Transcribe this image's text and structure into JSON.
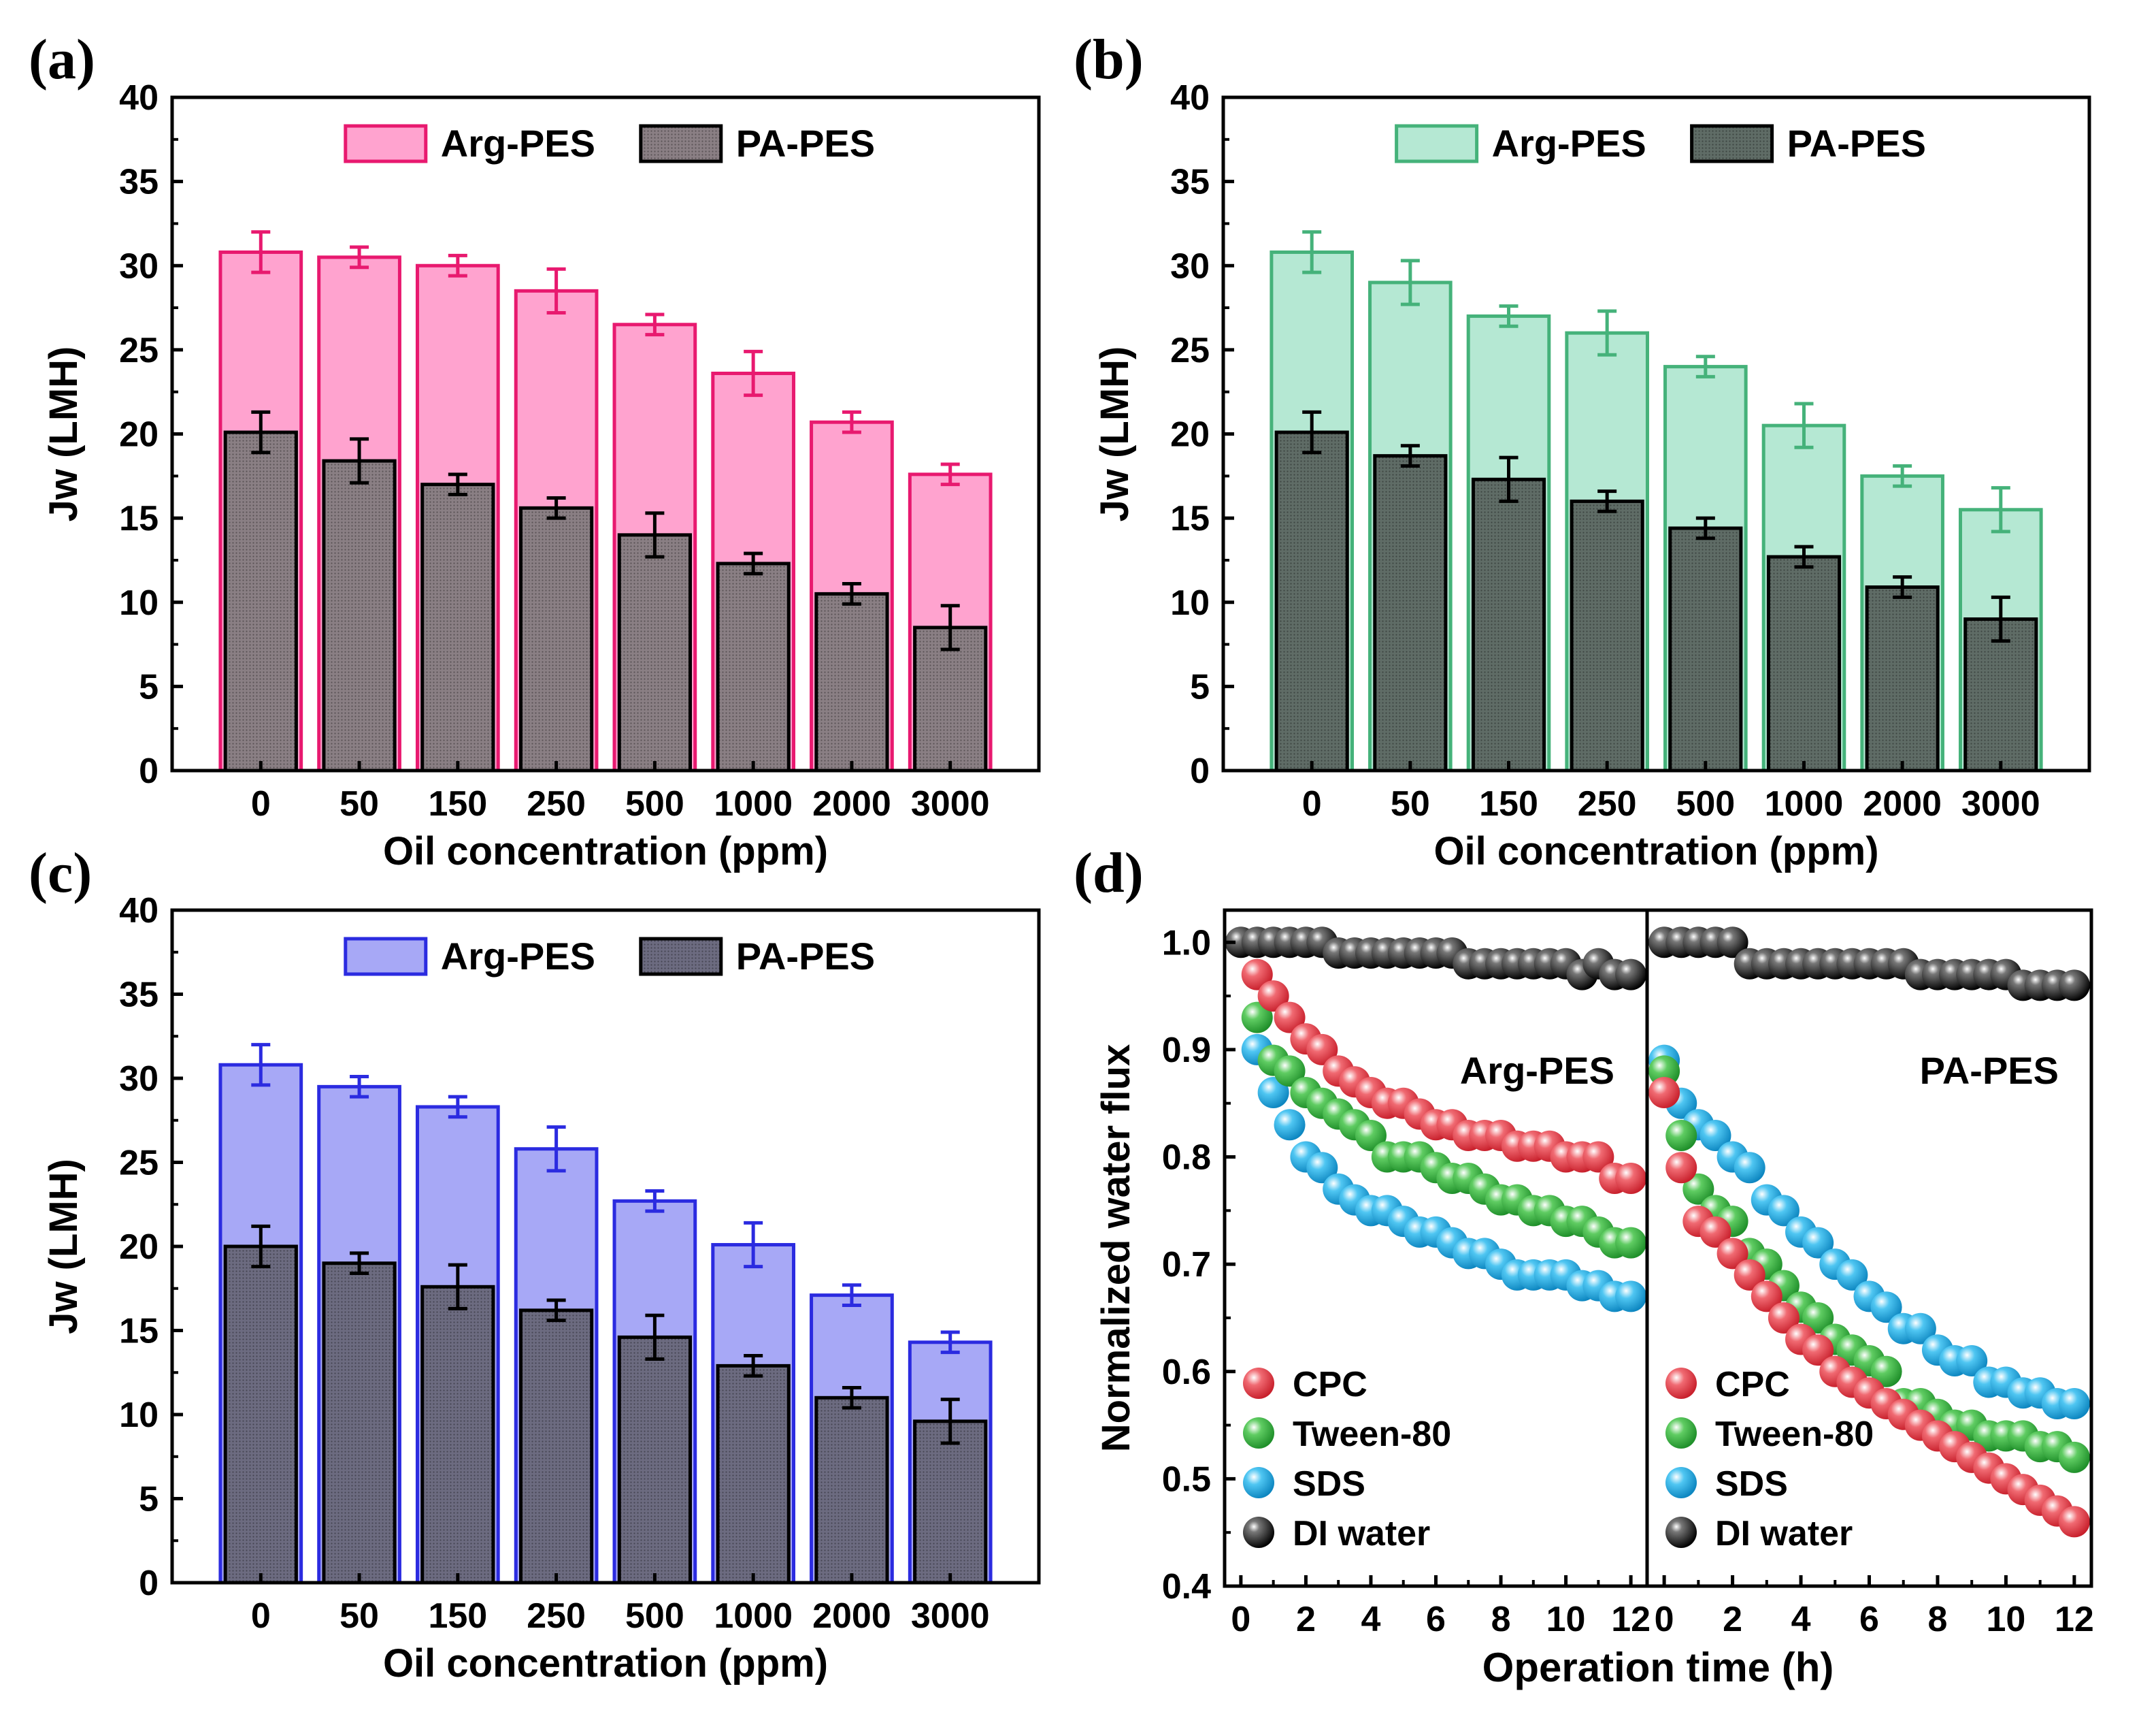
{
  "figure": {
    "panels": [
      {
        "id": "a",
        "tag": "(a)"
      },
      {
        "id": "b",
        "tag": "(b)"
      },
      {
        "id": "c",
        "tag": "(c)"
      },
      {
        "id": "d",
        "tag": "(d)"
      }
    ]
  },
  "chart_data": [
    {
      "panel": "(a)",
      "type": "bar",
      "title": "",
      "xlabel": "Oil concentration (ppm)",
      "ylabel": "Jw (LMH)",
      "ylim": [
        0,
        40
      ],
      "yticks": [
        0,
        5,
        10,
        15,
        20,
        25,
        30,
        35,
        40
      ],
      "categories": [
        "0",
        "50",
        "150",
        "250",
        "500",
        "1000",
        "2000",
        "3000"
      ],
      "legend_position": "top-center",
      "series": [
        {
          "name": "Arg-PES",
          "fill": "#ffa3cf",
          "stroke": "#e8196f",
          "values": [
            30.8,
            30.5,
            30.0,
            28.5,
            26.5,
            23.6,
            20.7,
            17.6
          ],
          "errors": [
            1.2,
            0.6,
            0.6,
            1.3,
            0.6,
            1.3,
            0.6,
            0.6
          ]
        },
        {
          "name": "PA-PES",
          "fill": "#8a7f84",
          "stroke": "#000000",
          "values": [
            20.1,
            18.4,
            17.0,
            15.6,
            14.0,
            12.3,
            10.5,
            8.5
          ],
          "errors": [
            1.2,
            1.3,
            0.6,
            0.6,
            1.3,
            0.6,
            0.6,
            1.3
          ]
        }
      ]
    },
    {
      "panel": "(b)",
      "type": "bar",
      "title": "",
      "xlabel": "Oil concentration (ppm)",
      "ylabel": "Jw (LMH)",
      "ylim": [
        0,
        40
      ],
      "yticks": [
        0,
        5,
        10,
        15,
        20,
        25,
        30,
        35,
        40
      ],
      "categories": [
        "0",
        "50",
        "150",
        "250",
        "500",
        "1000",
        "2000",
        "3000"
      ],
      "legend_position": "top-center",
      "series": [
        {
          "name": "Arg-PES",
          "fill": "#b5e8d3",
          "stroke": "#45b27a",
          "values": [
            30.8,
            29.0,
            27.0,
            26.0,
            24.0,
            20.5,
            17.5,
            15.5
          ],
          "errors": [
            1.2,
            1.3,
            0.6,
            1.3,
            0.6,
            1.3,
            0.6,
            1.3
          ]
        },
        {
          "name": "PA-PES",
          "fill": "#5f6c66",
          "stroke": "#000000",
          "values": [
            20.1,
            18.7,
            17.3,
            16.0,
            14.4,
            12.7,
            10.9,
            9.0
          ],
          "errors": [
            1.2,
            0.6,
            1.3,
            0.6,
            0.6,
            0.6,
            0.6,
            1.3
          ]
        }
      ]
    },
    {
      "panel": "(c)",
      "type": "bar",
      "title": "",
      "xlabel": "Oil concentration (ppm)",
      "ylabel": "Jw (LMH)",
      "ylim": [
        0,
        40
      ],
      "yticks": [
        0,
        5,
        10,
        15,
        20,
        25,
        30,
        35,
        40
      ],
      "categories": [
        "0",
        "50",
        "150",
        "250",
        "500",
        "1000",
        "2000",
        "3000"
      ],
      "legend_position": "top-center",
      "series": [
        {
          "name": "Arg-PES",
          "fill": "#a7a8f6",
          "stroke": "#2b2be0",
          "values": [
            30.8,
            29.5,
            28.3,
            25.8,
            22.7,
            20.1,
            17.1,
            14.3
          ],
          "errors": [
            1.2,
            0.6,
            0.6,
            1.3,
            0.6,
            1.3,
            0.6,
            0.6
          ]
        },
        {
          "name": "PA-PES",
          "fill": "#6c6b80",
          "stroke": "#000000",
          "values": [
            20.0,
            19.0,
            17.6,
            16.2,
            14.6,
            12.9,
            11.0,
            9.6
          ],
          "errors": [
            1.2,
            0.6,
            1.3,
            0.6,
            1.3,
            0.6,
            0.6,
            1.3
          ]
        }
      ]
    },
    {
      "panel": "(d)",
      "type": "scatter",
      "title": "",
      "xlabel": "Operation time (h)",
      "ylabel": "Normalized water flux",
      "xlim": [
        -0.5,
        12.5
      ],
      "xticks": [
        0,
        2,
        4,
        6,
        8,
        10,
        12
      ],
      "ylim": [
        0.4,
        1.03
      ],
      "yticks": [
        0.4,
        0.5,
        0.6,
        0.7,
        0.8,
        0.9,
        1.0
      ],
      "legend_position": "bottom-left",
      "subplots": [
        {
          "label": "Arg-PES",
          "series": [
            {
              "name": "DI water",
              "color": "#111111",
              "x": [
                0,
                0.5,
                1,
                1.5,
                2,
                2.5,
                3,
                3.5,
                4,
                4.5,
                5,
                5.5,
                6,
                6.5,
                7,
                7.5,
                8,
                8.5,
                9,
                9.5,
                10,
                10.5,
                11,
                11.5,
                12
              ],
              "y": [
                1.0,
                1.0,
                1.0,
                1.0,
                1.0,
                1.0,
                0.99,
                0.99,
                0.99,
                0.99,
                0.99,
                0.99,
                0.99,
                0.99,
                0.98,
                0.98,
                0.98,
                0.98,
                0.98,
                0.98,
                0.98,
                0.97,
                0.98,
                0.97,
                0.97
              ]
            },
            {
              "name": "CPC",
              "color": "#e0424e",
              "x": [
                0.5,
                1,
                1.5,
                2,
                2.5,
                3,
                3.5,
                4,
                4.5,
                5,
                5.5,
                6,
                6.5,
                7,
                7.5,
                8,
                8.5,
                9,
                9.5,
                10,
                10.5,
                11,
                11.5,
                12
              ],
              "y": [
                0.97,
                0.95,
                0.93,
                0.91,
                0.9,
                0.88,
                0.87,
                0.86,
                0.85,
                0.85,
                0.84,
                0.83,
                0.83,
                0.82,
                0.82,
                0.82,
                0.81,
                0.81,
                0.81,
                0.8,
                0.8,
                0.8,
                0.78,
                0.78
              ]
            },
            {
              "name": "Tween-80",
              "color": "#35b540",
              "x": [
                0.5,
                1,
                1.5,
                2,
                2.5,
                3,
                3.5,
                4,
                4.5,
                5,
                5.5,
                6,
                6.5,
                7,
                7.5,
                8,
                8.5,
                9,
                9.5,
                10,
                10.5,
                11,
                11.5,
                12
              ],
              "y": [
                0.93,
                0.89,
                0.88,
                0.86,
                0.85,
                0.84,
                0.83,
                0.82,
                0.8,
                0.8,
                0.8,
                0.79,
                0.78,
                0.78,
                0.77,
                0.76,
                0.76,
                0.75,
                0.75,
                0.74,
                0.74,
                0.73,
                0.72,
                0.72
              ]
            },
            {
              "name": "SDS",
              "color": "#1fb1e8",
              "x": [
                0.5,
                1,
                1.5,
                2,
                2.5,
                3,
                3.5,
                4,
                4.5,
                5,
                5.5,
                6,
                6.5,
                7,
                7.5,
                8,
                8.5,
                9,
                9.5,
                10,
                10.5,
                11,
                11.5,
                12
              ],
              "y": [
                0.9,
                0.86,
                0.83,
                0.8,
                0.79,
                0.77,
                0.76,
                0.75,
                0.75,
                0.74,
                0.73,
                0.73,
                0.72,
                0.71,
                0.71,
                0.7,
                0.69,
                0.69,
                0.69,
                0.69,
                0.68,
                0.68,
                0.67,
                0.67
              ]
            }
          ]
        },
        {
          "label": "PA-PES",
          "series": [
            {
              "name": "DI water",
              "color": "#111111",
              "x": [
                0,
                0.5,
                1,
                1.5,
                2,
                2.5,
                3,
                3.5,
                4,
                4.5,
                5,
                5.5,
                6,
                6.5,
                7,
                7.5,
                8,
                8.5,
                9,
                9.5,
                10,
                10.5,
                11,
                11.5,
                12
              ],
              "y": [
                1.0,
                1.0,
                1.0,
                1.0,
                1.0,
                0.98,
                0.98,
                0.98,
                0.98,
                0.98,
                0.98,
                0.98,
                0.98,
                0.98,
                0.98,
                0.97,
                0.97,
                0.97,
                0.97,
                0.97,
                0.97,
                0.96,
                0.96,
                0.96,
                0.96
              ]
            },
            {
              "name": "CPC",
              "color": "#e0424e",
              "x": [
                0,
                0.5,
                1,
                1.5,
                2,
                2.5,
                3,
                3.5,
                4,
                4.5,
                5,
                5.5,
                6,
                6.5,
                7,
                7.5,
                8,
                8.5,
                9,
                9.5,
                10,
                10.5,
                11,
                11.5,
                12
              ],
              "y": [
                0.86,
                0.79,
                0.74,
                0.73,
                0.71,
                0.69,
                0.67,
                0.65,
                0.63,
                0.62,
                0.6,
                0.59,
                0.58,
                0.57,
                0.56,
                0.55,
                0.54,
                0.53,
                0.52,
                0.51,
                0.5,
                0.49,
                0.48,
                0.47,
                0.46
              ]
            },
            {
              "name": "Tween-80",
              "color": "#35b540",
              "x": [
                0,
                0.5,
                1,
                1.5,
                2,
                2.5,
                3,
                3.5,
                4,
                4.5,
                5,
                5.5,
                6,
                6.5,
                7,
                7.5,
                8,
                8.5,
                9,
                9.5,
                10,
                10.5,
                11,
                11.5,
                12
              ],
              "y": [
                0.88,
                0.82,
                0.77,
                0.75,
                0.74,
                0.71,
                0.7,
                0.68,
                0.66,
                0.65,
                0.63,
                0.62,
                0.61,
                0.6,
                0.57,
                0.57,
                0.56,
                0.55,
                0.55,
                0.54,
                0.54,
                0.54,
                0.53,
                0.53,
                0.52
              ]
            },
            {
              "name": "SDS",
              "color": "#1fb1e8",
              "x": [
                0,
                0.5,
                1,
                1.5,
                2,
                2.5,
                3,
                3.5,
                4,
                4.5,
                5,
                5.5,
                6,
                6.5,
                7,
                7.5,
                8,
                8.5,
                9,
                9.5,
                10,
                10.5,
                11,
                11.5,
                12
              ],
              "y": [
                0.89,
                0.85,
                0.83,
                0.82,
                0.8,
                0.79,
                0.76,
                0.75,
                0.73,
                0.72,
                0.7,
                0.69,
                0.67,
                0.66,
                0.64,
                0.64,
                0.62,
                0.61,
                0.61,
                0.59,
                0.59,
                0.58,
                0.58,
                0.57,
                0.57
              ]
            }
          ]
        }
      ]
    }
  ]
}
